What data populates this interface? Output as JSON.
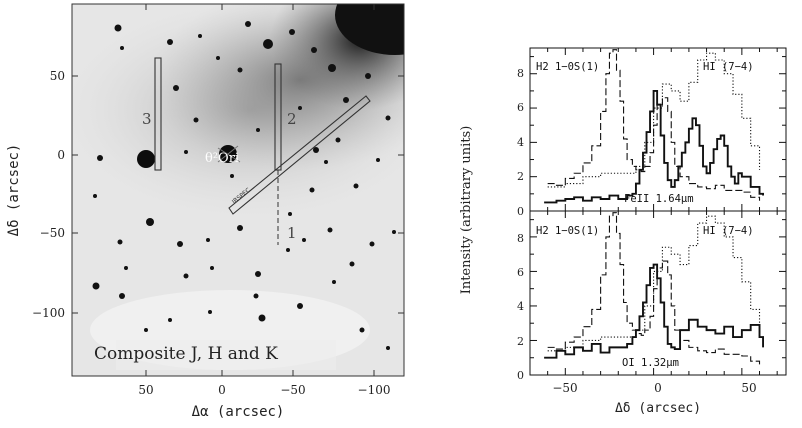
{
  "left_panel": {
    "xlabel": "Δα (arcsec)",
    "ylabel": "Δδ (arcsec)",
    "x_ticks": [
      "100",
      "50",
      "0",
      "−50",
      "−100"
    ],
    "y_ticks": [
      "50",
      "0",
      "−50",
      "−100"
    ],
    "caption": "Composite J, H and K",
    "star_label": "θ²Ori",
    "slit_labels": [
      "3",
      "2",
      "1"
    ],
    "irspec_label": "IRSPEC"
  },
  "right_panel": {
    "ylabel": "Intensity (arbitrary units)",
    "xlabel": "Δδ (arcsec)",
    "x_ticks": [
      "−50",
      "0",
      "50"
    ],
    "top": {
      "y_ticks": [
        "0",
        "2",
        "4",
        "6",
        "8"
      ],
      "left_label": "H2 1−0S(1)",
      "right_label": "HI (7−4)",
      "line_label": "FeII 1.64μm"
    },
    "bottom": {
      "y_ticks": [
        "0",
        "2",
        "4",
        "6",
        "8"
      ],
      "left_label": "H2 1−0S(1)",
      "right_label": "HI (7−4)",
      "line_label": "OI 1.32μm"
    }
  },
  "chart_data": [
    {
      "type": "line",
      "title": "",
      "xlabel": "Δδ (arcsec)",
      "ylabel": "Intensity (arbitrary units)",
      "xlim": [
        -70,
        75
      ],
      "ylim": [
        0,
        9.5
      ],
      "grid": false,
      "series": [
        {
          "name": "H2 1−0S(1)",
          "style": "dashed",
          "x": [
            -60,
            -55,
            -50,
            -45,
            -40,
            -35,
            -30,
            -27,
            -25,
            -23,
            -21,
            -19,
            -17,
            -15,
            -12,
            -10,
            -7,
            -5,
            -2,
            0,
            2,
            5,
            8,
            10,
            12,
            15,
            20,
            25,
            30,
            35,
            40,
            45,
            50,
            55,
            60
          ],
          "y": [
            1.6,
            1.5,
            1.9,
            2.2,
            2.8,
            3.8,
            5.8,
            8.0,
            9.2,
            9.4,
            8.2,
            6.4,
            4.2,
            3.0,
            2.6,
            2.4,
            2.3,
            2.6,
            3.4,
            5.0,
            6.2,
            6.6,
            5.8,
            4.0,
            2.6,
            2.0,
            1.6,
            1.4,
            1.3,
            1.5,
            1.2,
            1.2,
            1.1,
            0.8,
            0.6
          ]
        },
        {
          "name": "HI (7−4)",
          "style": "dotted",
          "x": [
            -60,
            -50,
            -40,
            -30,
            -20,
            -10,
            -5,
            0,
            5,
            10,
            15,
            20,
            25,
            30,
            35,
            40,
            45,
            50,
            55,
            60
          ],
          "y": [
            1.4,
            1.6,
            2.0,
            2.2,
            2.2,
            2.6,
            4.0,
            6.0,
            7.4,
            7.0,
            6.4,
            7.5,
            8.8,
            9.2,
            8.8,
            8.0,
            6.8,
            5.4,
            3.8,
            2.4
          ]
        },
        {
          "name": "FeII 1.64μm",
          "style": "solid",
          "x": [
            -62,
            -55,
            -50,
            -45,
            -40,
            -35,
            -30,
            -25,
            -20,
            -15,
            -12,
            -10,
            -8,
            -6,
            -4,
            -2,
            0,
            2,
            4,
            6,
            8,
            10,
            12,
            14,
            16,
            18,
            20,
            22,
            24,
            26,
            28,
            30,
            32,
            34,
            36,
            38,
            40,
            42,
            44,
            46,
            48,
            50,
            55,
            60,
            62
          ],
          "y": [
            0.5,
            0.6,
            0.7,
            0.8,
            0.6,
            0.8,
            0.7,
            0.9,
            0.7,
            0.9,
            1.0,
            1.6,
            2.4,
            3.4,
            4.6,
            5.8,
            7.0,
            6.2,
            4.4,
            2.8,
            1.8,
            1.4,
            1.8,
            2.6,
            3.4,
            4.0,
            4.8,
            5.4,
            5.0,
            3.8,
            2.6,
            2.2,
            2.8,
            3.6,
            4.2,
            4.4,
            3.8,
            2.6,
            2.0,
            1.6,
            2.2,
            2.0,
            1.4,
            1.0,
            0.9
          ]
        }
      ]
    },
    {
      "type": "line",
      "title": "",
      "xlabel": "Δδ (arcsec)",
      "ylabel": "Intensity (arbitrary units)",
      "xlim": [
        -70,
        75
      ],
      "ylim": [
        0,
        9.5
      ],
      "grid": false,
      "series": [
        {
          "name": "H2 1−0S(1)",
          "style": "dashed",
          "x": [
            -60,
            -55,
            -50,
            -45,
            -40,
            -35,
            -30,
            -27,
            -25,
            -23,
            -21,
            -19,
            -17,
            -15,
            -12,
            -10,
            -7,
            -5,
            -2,
            0,
            2,
            5,
            8,
            10,
            12,
            15,
            20,
            25,
            30,
            35,
            40,
            45,
            50,
            55,
            60
          ],
          "y": [
            1.6,
            1.5,
            1.9,
            2.2,
            2.8,
            3.8,
            5.8,
            8.0,
            9.2,
            9.4,
            8.2,
            6.4,
            4.2,
            3.0,
            2.6,
            2.4,
            2.3,
            2.6,
            3.4,
            5.0,
            6.2,
            6.6,
            5.8,
            4.0,
            2.6,
            2.0,
            1.6,
            1.4,
            1.3,
            1.5,
            1.2,
            1.2,
            1.1,
            0.8,
            0.6
          ]
        },
        {
          "name": "HI (7−4)",
          "style": "dotted",
          "x": [
            -60,
            -50,
            -40,
            -30,
            -20,
            -10,
            -5,
            0,
            5,
            10,
            15,
            20,
            25,
            30,
            35,
            40,
            45,
            50,
            55,
            60
          ],
          "y": [
            1.4,
            1.6,
            2.0,
            2.2,
            2.2,
            2.6,
            4.0,
            6.0,
            7.4,
            7.0,
            6.4,
            7.5,
            8.8,
            9.2,
            8.8,
            8.0,
            6.8,
            5.4,
            3.8,
            2.4
          ]
        },
        {
          "name": "OI 1.32μm",
          "style": "solid",
          "x": [
            -62,
            -55,
            -50,
            -45,
            -40,
            -35,
            -30,
            -25,
            -20,
            -15,
            -12,
            -10,
            -8,
            -6,
            -4,
            -2,
            0,
            2,
            4,
            6,
            8,
            10,
            12,
            15,
            20,
            25,
            30,
            35,
            40,
            45,
            50,
            55,
            60,
            62
          ],
          "y": [
            1.0,
            1.4,
            1.2,
            1.6,
            1.4,
            1.8,
            1.3,
            1.6,
            1.6,
            1.8,
            2.2,
            2.6,
            3.4,
            4.2,
            5.2,
            6.2,
            6.4,
            5.6,
            4.2,
            2.8,
            1.8,
            1.6,
            1.5,
            2.6,
            3.2,
            2.8,
            2.6,
            2.4,
            2.8,
            2.2,
            2.6,
            2.9,
            2.2,
            1.6
          ]
        }
      ]
    }
  ]
}
